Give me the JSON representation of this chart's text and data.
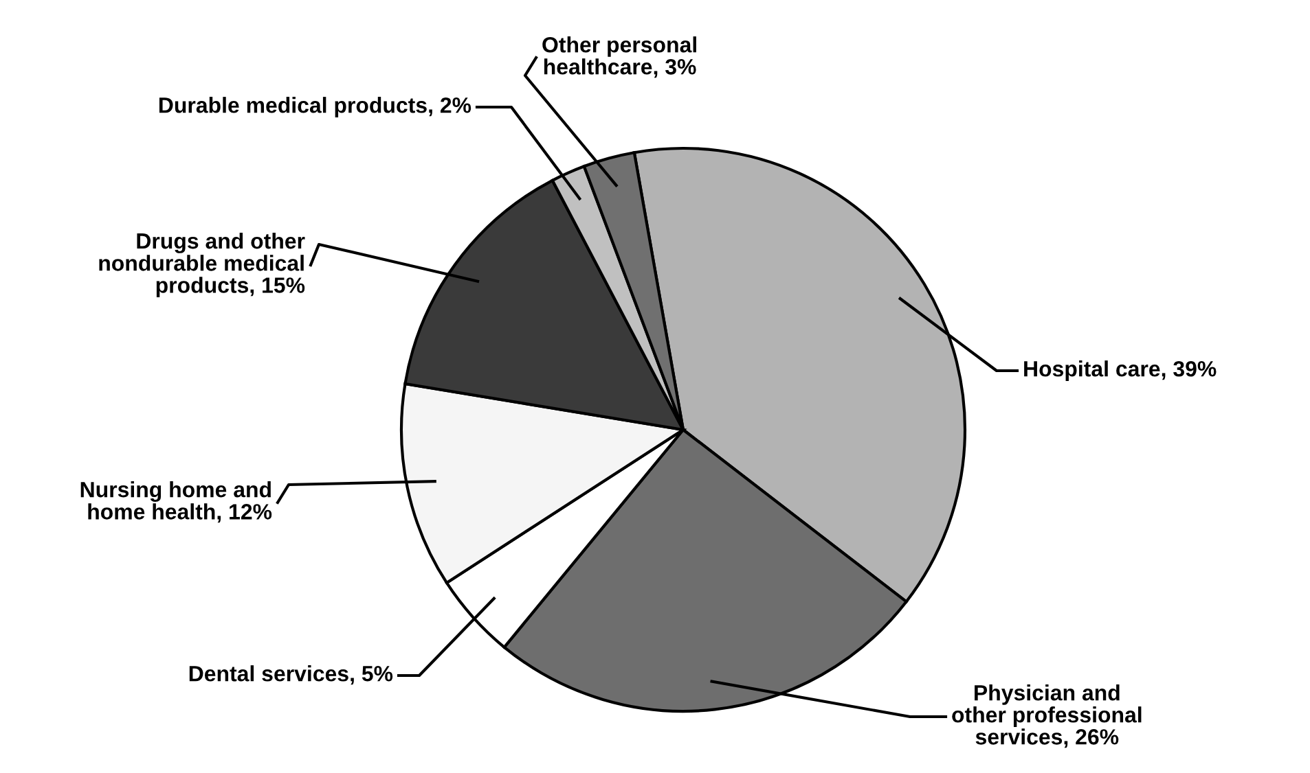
{
  "chart_data": {
    "type": "pie",
    "categories": [
      "Hospital care, 39%",
      "Physician and\nother professional\nservices, 26%",
      "Dental services, 5%",
      "Nursing home and\nhome health, 12%",
      "Drugs and other\nnondurable medical\nproducts, 15%",
      "Durable medical products, 2%",
      "Other personal\nhealthcare, 3%"
    ],
    "values": [
      39,
      26,
      5,
      12,
      15,
      2,
      3
    ],
    "colors": [
      "#b3b3b3",
      "#6e6e6e",
      "#ffffff",
      "#f5f5f5",
      "#3a3a3a",
      "#c0c0c0",
      "#707070"
    ]
  }
}
